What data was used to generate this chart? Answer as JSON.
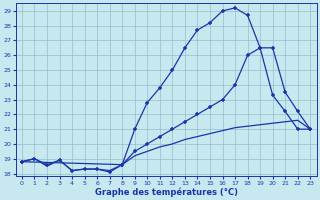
{
  "xlabel": "Graphe des températures (°C)",
  "xlim": [
    -0.5,
    23.5
  ],
  "ylim": [
    17.8,
    29.5
  ],
  "xticks": [
    0,
    1,
    2,
    3,
    4,
    5,
    6,
    7,
    8,
    9,
    10,
    11,
    12,
    13,
    14,
    15,
    16,
    17,
    18,
    19,
    20,
    21,
    22,
    23
  ],
  "yticks": [
    18,
    19,
    20,
    21,
    22,
    23,
    24,
    25,
    26,
    27,
    28,
    29
  ],
  "bg_color": "#c8e8f0",
  "line_color": "#1a35aa",
  "grid_color": "#90bfcf",
  "line1_x": [
    0,
    1,
    2,
    3,
    4,
    5,
    6,
    7,
    8,
    9,
    10,
    11,
    12,
    13,
    14,
    15,
    16,
    17,
    18,
    19,
    20,
    21,
    22,
    23
  ],
  "line1_y": [
    18.8,
    19.0,
    18.6,
    18.9,
    18.2,
    18.3,
    18.3,
    18.1,
    18.6,
    21.0,
    22.8,
    23.8,
    25.0,
    26.5,
    27.7,
    28.2,
    29.0,
    29.2,
    28.7,
    26.5,
    23.3,
    22.2,
    21.0,
    21.0
  ],
  "line2_x": [
    0,
    8,
    9,
    10,
    11,
    12,
    13,
    14,
    15,
    16,
    17,
    18,
    19,
    20,
    21,
    22,
    23
  ],
  "line2_y": [
    18.8,
    18.6,
    19.5,
    20.0,
    20.5,
    21.0,
    21.5,
    22.0,
    22.5,
    23.0,
    24.0,
    26.0,
    26.5,
    26.5,
    23.5,
    22.2,
    21.0
  ],
  "line3_x": [
    0,
    1,
    2,
    3,
    4,
    5,
    6,
    7,
    8,
    9,
    10,
    11,
    12,
    13,
    14,
    15,
    16,
    17,
    18,
    19,
    20,
    21,
    22,
    23
  ],
  "line3_y": [
    18.8,
    19.0,
    18.5,
    18.9,
    18.2,
    18.3,
    18.3,
    18.2,
    18.6,
    19.2,
    19.5,
    19.8,
    20.0,
    20.3,
    20.5,
    20.7,
    20.9,
    21.1,
    21.2,
    21.3,
    21.4,
    21.5,
    21.6,
    21.0
  ]
}
